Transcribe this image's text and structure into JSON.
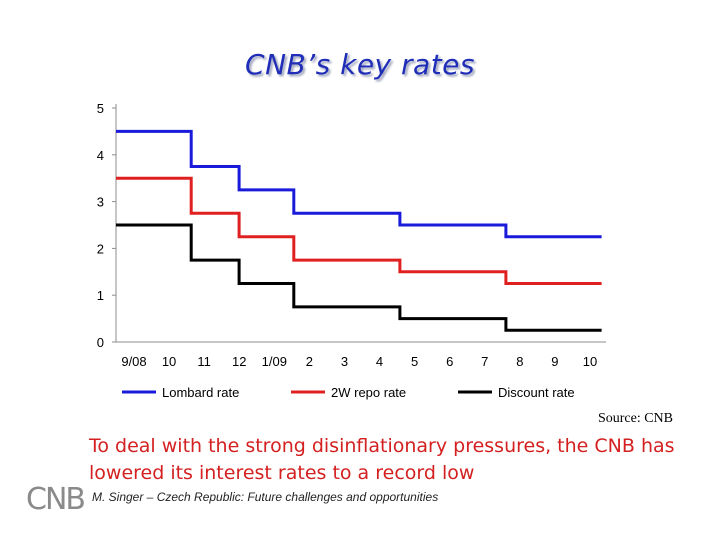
{
  "slide": {
    "title": "CNB’s key rates",
    "source": "Source: CNB",
    "caption": "To deal with the strong disinflationary pressures, the CNB has lowered its interest rates to a record low",
    "logo_text": "CNB",
    "footer": "M. Singer – Czech Republic: Future challenges and opportunities"
  },
  "colors": {
    "title": "#1f2db8",
    "caption": "#d42020",
    "lombard": "#1a1adb",
    "repo": "#e02020",
    "discount": "#000000"
  },
  "chart_data": {
    "type": "line",
    "step": true,
    "title": "",
    "xlabel": "",
    "ylabel": "",
    "categories": [
      "9/08",
      "10",
      "11",
      "12",
      "1/09",
      "2",
      "3",
      "4",
      "5",
      "6",
      "7",
      "8",
      "9",
      "10"
    ],
    "yticks": [
      "0",
      "1",
      "2",
      "3",
      "4",
      "5"
    ],
    "ylim": [
      0,
      5
    ],
    "grid": false,
    "legend_position": "bottom",
    "series": [
      {
        "name": "Lombard rate",
        "color": "#1a1adb",
        "points": [
          [
            0,
            4.5
          ],
          [
            2.2,
            4.5
          ],
          [
            2.2,
            3.75
          ],
          [
            3.6,
            3.75
          ],
          [
            3.6,
            3.25
          ],
          [
            5.2,
            3.25
          ],
          [
            5.2,
            2.75
          ],
          [
            8.3,
            2.75
          ],
          [
            8.3,
            2.5
          ],
          [
            11.4,
            2.5
          ],
          [
            11.4,
            2.25
          ],
          [
            14.2,
            2.25
          ]
        ]
      },
      {
        "name": "2W repo rate",
        "color": "#e02020",
        "points": [
          [
            0,
            3.5
          ],
          [
            2.2,
            3.5
          ],
          [
            2.2,
            2.75
          ],
          [
            3.6,
            2.75
          ],
          [
            3.6,
            2.25
          ],
          [
            5.2,
            2.25
          ],
          [
            5.2,
            1.75
          ],
          [
            8.3,
            1.75
          ],
          [
            8.3,
            1.5
          ],
          [
            11.4,
            1.5
          ],
          [
            11.4,
            1.25
          ],
          [
            14.2,
            1.25
          ]
        ]
      },
      {
        "name": "Discount rate",
        "color": "#000000",
        "points": [
          [
            0,
            2.5
          ],
          [
            2.2,
            2.5
          ],
          [
            2.2,
            1.75
          ],
          [
            3.6,
            1.75
          ],
          [
            3.6,
            1.25
          ],
          [
            5.2,
            1.25
          ],
          [
            5.2,
            0.75
          ],
          [
            8.3,
            0.75
          ],
          [
            8.3,
            0.5
          ],
          [
            11.4,
            0.5
          ],
          [
            11.4,
            0.25
          ],
          [
            14.2,
            0.25
          ]
        ]
      }
    ]
  }
}
